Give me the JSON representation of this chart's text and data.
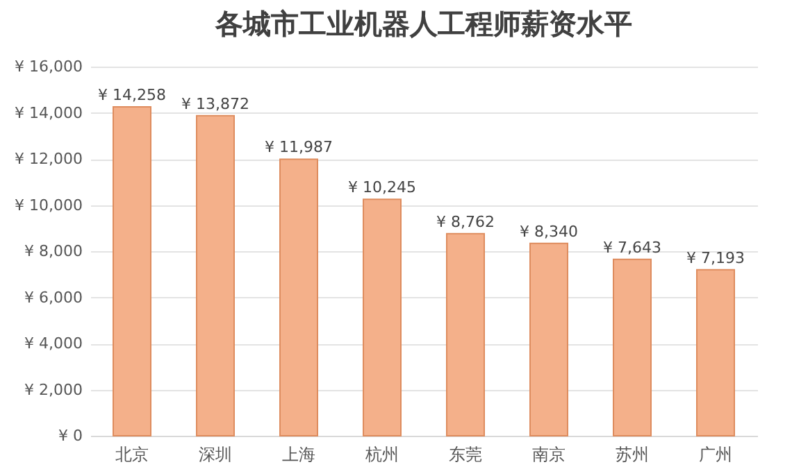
{
  "chart_data": {
    "type": "bar",
    "title": "各城市工业机器人工程师薪资水平",
    "categories": [
      "北京",
      "深圳",
      "上海",
      "杭州",
      "东莞",
      "南京",
      "苏州",
      "广州"
    ],
    "values": [
      14258,
      13872,
      11987,
      10245,
      8762,
      8340,
      7643,
      7193
    ],
    "value_labels": [
      "¥ 14,258",
      "¥ 13,872",
      "¥ 11,987",
      "¥ 10,245",
      "¥ 8,762",
      "¥ 8,340",
      "¥ 7,643",
      "¥ 7,193"
    ],
    "color": "#f4b08a",
    "ylim": [
      0,
      16000
    ],
    "yticks": [
      {
        "value": 0,
        "label": "¥ 0"
      },
      {
        "value": 2000,
        "label": "¥ 2,000"
      },
      {
        "value": 4000,
        "label": "¥ 4,000"
      },
      {
        "value": 6000,
        "label": "¥ 6,000"
      },
      {
        "value": 8000,
        "label": "¥ 8,000"
      },
      {
        "value": 10000,
        "label": "¥ 10,000"
      },
      {
        "value": 12000,
        "label": "¥ 12,000"
      },
      {
        "value": 14000,
        "label": "¥ 14,000"
      },
      {
        "value": 16000,
        "label": "¥ 16,000"
      }
    ],
    "grid": "y"
  }
}
